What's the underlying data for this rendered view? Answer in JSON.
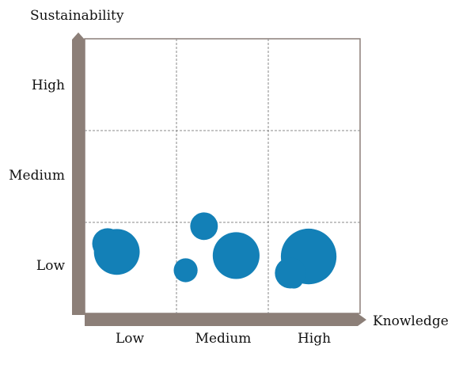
{
  "y_axis_title": "Sustainability",
  "x_axis_title": "Knowledge",
  "levels": [
    "Low",
    "Medium",
    "High"
  ],
  "colors": {
    "bubble": "#1380b7",
    "axis_bar": "#8c7f78",
    "grid": "#888888",
    "frame": "#8c7f78"
  },
  "chart_data": {
    "type": "scatter",
    "xlabel": "Knowledge",
    "ylabel": "Sustainability",
    "x_categories": [
      "Low",
      "Medium",
      "High"
    ],
    "y_categories": [
      "Low",
      "Medium",
      "High"
    ],
    "grid": true,
    "bubbles": [
      {
        "x_level": "Low",
        "x": 0.25,
        "y_level": "High",
        "y": 0.76,
        "size": 1.0
      },
      {
        "x_level": "Medium",
        "x": 1.65,
        "y_level": "High",
        "y": 0.63,
        "size": 2.3
      },
      {
        "x_level": "High",
        "x": 2.28,
        "y_level": "High",
        "y": 0.37,
        "size": 0.35
      },
      {
        "x_level": "Low",
        "x": 0.35,
        "y_level": "Medium",
        "y": 0.67,
        "size": 2.2
      },
      {
        "x_level": "Medium",
        "x": 1.3,
        "y_level": "Medium",
        "y": 0.95,
        "size": 0.8
      },
      {
        "x_level": "High",
        "x": 2.44,
        "y_level": "Medium",
        "y": 0.62,
        "size": 3.25
      },
      {
        "x_level": "Medium",
        "x": 1.1,
        "y_level": "Low",
        "y": 0.47,
        "size": 0.6
      },
      {
        "x_level": "High",
        "x": 2.24,
        "y_level": "Low",
        "y": 0.44,
        "size": 1.0
      }
    ]
  }
}
